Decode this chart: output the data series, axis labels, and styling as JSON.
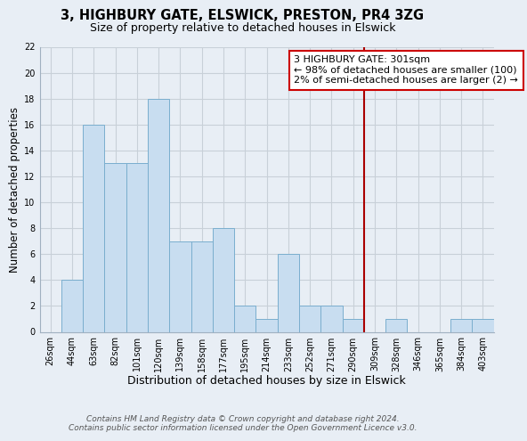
{
  "title": "3, HIGHBURY GATE, ELSWICK, PRESTON, PR4 3ZG",
  "subtitle": "Size of property relative to detached houses in Elswick",
  "xlabel": "Distribution of detached houses by size in Elswick",
  "ylabel": "Number of detached properties",
  "bar_color": "#c8ddf0",
  "bar_edge_color": "#7aaece",
  "background_color": "#e8eef5",
  "plot_bg_color": "#e8eef5",
  "grid_color": "#c8d0d8",
  "bin_labels": [
    "26sqm",
    "44sqm",
    "63sqm",
    "82sqm",
    "101sqm",
    "120sqm",
    "139sqm",
    "158sqm",
    "177sqm",
    "195sqm",
    "214sqm",
    "233sqm",
    "252sqm",
    "271sqm",
    "290sqm",
    "309sqm",
    "328sqm",
    "346sqm",
    "365sqm",
    "384sqm",
    "403sqm"
  ],
  "bar_heights": [
    0,
    4,
    16,
    13,
    13,
    18,
    7,
    7,
    8,
    2,
    1,
    6,
    2,
    2,
    1,
    0,
    1,
    0,
    0,
    1,
    1
  ],
  "ylim": [
    0,
    22
  ],
  "yticks": [
    0,
    2,
    4,
    6,
    8,
    10,
    12,
    14,
    16,
    18,
    20,
    22
  ],
  "vline_color": "#aa0000",
  "annotation_text": "3 HIGHBURY GATE: 301sqm\n← 98% of detached houses are smaller (100)\n2% of semi-detached houses are larger (2) →",
  "annotation_box_color": "#ffffff",
  "annotation_box_edge": "#cc0000",
  "footer_line1": "Contains HM Land Registry data © Crown copyright and database right 2024.",
  "footer_line2": "Contains public sector information licensed under the Open Government Licence v3.0.",
  "title_fontsize": 10.5,
  "subtitle_fontsize": 9,
  "tick_fontsize": 7,
  "xlabel_fontsize": 9,
  "ylabel_fontsize": 8.5,
  "footer_fontsize": 6.5,
  "annotation_fontsize": 8
}
